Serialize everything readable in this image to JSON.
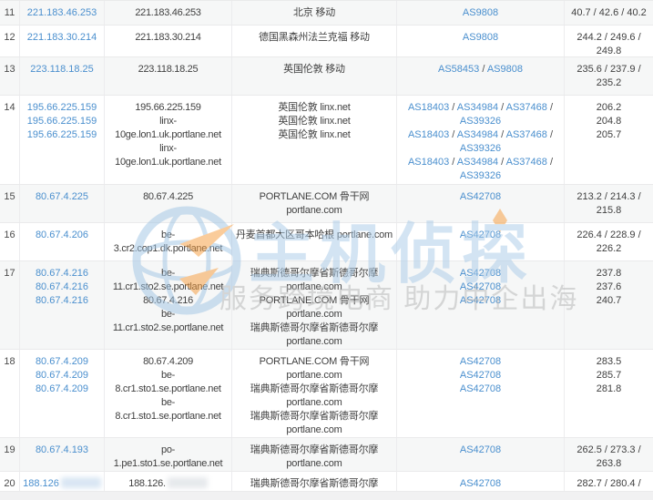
{
  "watermark": {
    "brand_text": "主机侦探",
    "slogan": "服务跨境电商 助力中企出海",
    "brand_color": "#a9cbe8",
    "slogan_color": "#b4b4b4",
    "globe_color": "#9fc4e4",
    "arrow_color": "#f79b3a"
  },
  "colors": {
    "link_blue": "#4a8fce",
    "text_dark": "#404040",
    "shaded_row": "#f6f7f7",
    "border": "#eaeaeb"
  },
  "table": {
    "rows": [
      {
        "hop": "11",
        "height": 28,
        "shaded": true,
        "ips": [
          "221.183.46.253"
        ],
        "hosts": [
          "221.183.46.253"
        ],
        "location": [
          "北京 移动"
        ],
        "asn": [
          "AS9808"
        ],
        "latency": [
          "40.7 / 42.6 / 40.2"
        ]
      },
      {
        "hop": "12",
        "height": 35,
        "shaded": false,
        "ips": [
          "221.183.30.214"
        ],
        "hosts": [
          "221.183.30.214"
        ],
        "location": [
          "德国黑森州法兰克福 移动"
        ],
        "asn": [
          "AS9808"
        ],
        "latency": [
          "244.2 / 249.6 /",
          "249.8"
        ]
      },
      {
        "hop": "13",
        "height": 42,
        "shaded": true,
        "ips": [
          "223.118.18.25"
        ],
        "hosts": [
          "223.118.18.25"
        ],
        "location": [
          "英国伦敦 移动"
        ],
        "asn": [
          "AS58453 / AS9808"
        ],
        "latency": [
          "235.6 / 237.9 /",
          "235.2"
        ]
      },
      {
        "hop": "14",
        "height": 98,
        "shaded": false,
        "ips": [
          "195.66.225.159",
          "195.66.225.159",
          "195.66.225.159"
        ],
        "hosts": [
          "195.66.225.159",
          "linx-",
          "10ge.lon1.uk.portlane.net",
          "linx-",
          "10ge.lon1.uk.portlane.net"
        ],
        "location": [
          "英国伦敦 linx.net",
          "英国伦敦 linx.net",
          "英国伦敦 linx.net"
        ],
        "asn": [
          "AS18403 / AS34984 / AS37468 /",
          "AS39326",
          "AS18403 / AS34984 / AS37468 /",
          "AS39326",
          "AS18403 / AS34984 / AS37468 /",
          "AS39326"
        ],
        "latency": [
          "206.2",
          "204.8",
          "205.7"
        ]
      },
      {
        "hop": "15",
        "height": 42,
        "shaded": true,
        "ips": [
          "80.67.4.225"
        ],
        "hosts": [
          "80.67.4.225"
        ],
        "location": [
          "PORTLANE.COM 骨干网",
          "portlane.com"
        ],
        "asn": [
          "AS42708"
        ],
        "latency": [
          "213.2 / 214.3 /",
          "215.8"
        ]
      },
      {
        "hop": "16",
        "height": 42,
        "shaded": false,
        "ips": [
          "80.67.4.206"
        ],
        "hosts": [
          "be-",
          "3.cr2.cop1.dk.portlane.net"
        ],
        "location": [
          "丹麦首都大区哥本哈根 portlane.com"
        ],
        "asn": [
          "AS42708"
        ],
        "latency": [
          "226.4 / 228.9 /",
          "226.2"
        ]
      },
      {
        "hop": "17",
        "height": 97,
        "shaded": true,
        "ips": [
          "80.67.4.216",
          "80.67.4.216",
          "80.67.4.216"
        ],
        "hosts": [
          "be-",
          "11.cr1.sto2.se.portlane.net",
          "80.67.4.216",
          "be-",
          "11.cr1.sto2.se.portlane.net"
        ],
        "location": [
          "瑞典斯德哥尔摩省斯德哥尔摩",
          "portlane.com",
          "PORTLANE.COM 骨干网",
          "portlane.com",
          "瑞典斯德哥尔摩省斯德哥尔摩",
          "portlane.com"
        ],
        "asn": [
          "AS42708",
          "AS42708",
          "AS42708"
        ],
        "latency": [
          "237.8",
          "237.6",
          "240.7"
        ]
      },
      {
        "hop": "18",
        "height": 97,
        "shaded": false,
        "ips": [
          "80.67.4.209",
          "80.67.4.209",
          "80.67.4.209"
        ],
        "hosts": [
          "80.67.4.209",
          "be-",
          "8.cr1.sto1.se.portlane.net",
          "be-",
          "8.cr1.sto1.se.portlane.net"
        ],
        "location": [
          "PORTLANE.COM 骨干网",
          "portlane.com",
          "瑞典斯德哥尔摩省斯德哥尔摩",
          "portlane.com",
          "瑞典斯德哥尔摩省斯德哥尔摩",
          "portlane.com"
        ],
        "asn": [
          "AS42708",
          "AS42708",
          "AS42708"
        ],
        "latency": [
          "283.5",
          "285.7",
          "281.8"
        ]
      },
      {
        "hop": "19",
        "height": 37,
        "shaded": true,
        "ips": [
          "80.67.4.193"
        ],
        "hosts": [
          "po-",
          "1.pe1.sto1.se.portlane.net"
        ],
        "location": [
          "瑞典斯德哥尔摩省斯德哥尔摩",
          "portlane.com"
        ],
        "asn": [
          "AS42708"
        ],
        "latency": [
          "262.5 / 273.3 /",
          "263.8"
        ]
      },
      {
        "hop": "20",
        "height": 22,
        "shaded": false,
        "redacted": true,
        "ips": [
          "188.126"
        ],
        "hosts": [
          "188.126."
        ],
        "location": [
          "瑞典斯德哥尔摩省斯德哥尔摩"
        ],
        "asn": [
          "AS42708"
        ],
        "latency": [
          "282.7 / 280.4 /"
        ]
      }
    ]
  }
}
